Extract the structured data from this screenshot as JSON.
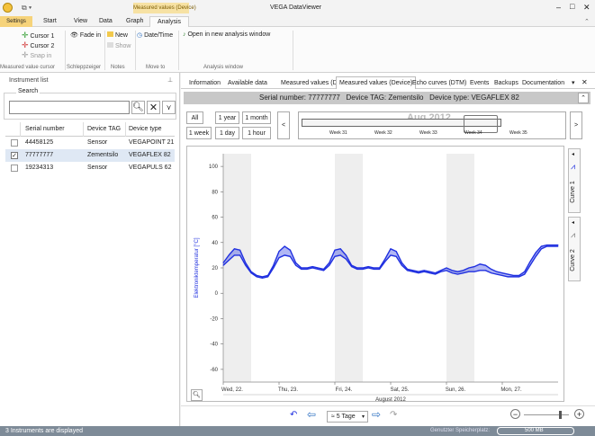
{
  "window": {
    "title": "VEGA DataViewer",
    "context_tab": "Measured values (Device)",
    "controls": {
      "minimize": "–",
      "maximize": "□",
      "close": "✕"
    }
  },
  "ribbon_tabs": [
    "Settings",
    "Start",
    "View",
    "Data",
    "Graph",
    "Analysis"
  ],
  "ribbon": {
    "cursor1": "Cursor 1",
    "cursor2": "Cursor 2",
    "snapin": "Snap in",
    "fadein": "Fade in",
    "new": "New",
    "show": "Show",
    "datetime": "Date/Time",
    "open_new": "Open in new analysis window",
    "groups": [
      "Measured value cursor",
      "Schleppzeiger",
      "Notes",
      "Move to",
      "Analysis window"
    ]
  },
  "instrument_list": {
    "title": "Instrument list",
    "search_label": "Search",
    "search_value": "",
    "columns": [
      "Serial number",
      "Device TAG",
      "Device type"
    ],
    "rows": [
      {
        "serial": "44458125",
        "tag": "Sensor",
        "type": "VEGAPOINT 21",
        "checked": false
      },
      {
        "serial": "77777777",
        "tag": "Zementsilo",
        "type": "VEGAFLEX 82",
        "checked": true
      },
      {
        "serial": "19234313",
        "tag": "Sensor",
        "type": "VEGAPULS 62",
        "checked": false
      }
    ]
  },
  "doc_tabs": [
    "Information",
    "Available data",
    "Measured values (DTM)",
    "Measured values (Device)",
    "Echo curves (DTM)",
    "Events",
    "Backups",
    "Documentation"
  ],
  "device_header": {
    "serial_label": "Serial number:",
    "serial": "77777777",
    "tag_label": "Device TAG:",
    "tag": "Zementsilo",
    "type_label": "Device type:",
    "type": "VEGAFLEX 82"
  },
  "range_buttons": [
    "All",
    "1 year",
    "1 month",
    "1 week",
    "1 day",
    "1 hour"
  ],
  "overview": {
    "month": "Aug 2012",
    "weeks": [
      "Week 31",
      "Week 32",
      "Week 33",
      "Week 34",
      "Week 35"
    ]
  },
  "side_tabs": [
    "Curve 1",
    "Curve 2"
  ],
  "chart_data": {
    "type": "line",
    "ylabel": "Elektroniktemperatur [°C]",
    "ylim": [
      -70,
      110
    ],
    "yticks": [
      100,
      80,
      60,
      40,
      20,
      0,
      -20,
      -40,
      -60
    ],
    "xticks": [
      "Wed, 22.",
      "Thu, 23.",
      "Fri, 24.",
      "Sat, 25.",
      "Sun, 26.",
      "Mon, 27."
    ],
    "xsublabel": "August 2012",
    "xlim": [
      0,
      6
    ],
    "grid": false,
    "color": "#2030e0",
    "series": [
      {
        "x": [
          0,
          0.1,
          0.2,
          0.3,
          0.4,
          0.5,
          0.6,
          0.7,
          0.8,
          0.9,
          1.0,
          1.1,
          1.2,
          1.3,
          1.4,
          1.5,
          1.6,
          1.7,
          1.8,
          1.9,
          2.0,
          2.1,
          2.2,
          2.3,
          2.4,
          2.5,
          2.6,
          2.7,
          2.8,
          2.9,
          3.0,
          3.1,
          3.2,
          3.3,
          3.4,
          3.5,
          3.6,
          3.7,
          3.8,
          3.9,
          4.0,
          4.1,
          4.2,
          4.3,
          4.4,
          4.5,
          4.6,
          4.7,
          4.8,
          4.9,
          5.0,
          5.1,
          5.2,
          5.3,
          5.4,
          5.5,
          5.6,
          5.7,
          5.8,
          5.9,
          6.0
        ],
        "values": [
          24,
          30,
          35,
          34,
          24,
          17,
          14,
          13,
          14,
          22,
          33,
          37,
          34,
          24,
          20,
          20,
          21,
          20,
          19,
          24,
          34,
          35,
          30,
          22,
          20,
          20,
          21,
          20,
          20,
          27,
          35,
          33,
          24,
          19,
          18,
          17,
          18,
          17,
          16,
          18,
          20,
          18,
          17,
          18,
          20,
          21,
          23,
          22,
          19,
          17,
          16,
          15,
          14,
          14,
          17,
          25,
          32,
          37,
          38,
          38,
          38
        ]
      },
      {
        "x": [
          0,
          0.1,
          0.2,
          0.3,
          0.4,
          0.5,
          0.6,
          0.7,
          0.8,
          0.9,
          1.0,
          1.1,
          1.2,
          1.3,
          1.4,
          1.5,
          1.6,
          1.7,
          1.8,
          1.9,
          2.0,
          2.1,
          2.2,
          2.3,
          2.4,
          2.5,
          2.6,
          2.7,
          2.8,
          2.9,
          3.0,
          3.1,
          3.2,
          3.3,
          3.4,
          3.5,
          3.6,
          3.7,
          3.8,
          3.9,
          4.0,
          4.1,
          4.2,
          4.3,
          4.4,
          4.5,
          4.6,
          4.7,
          4.8,
          4.9,
          5.0,
          5.1,
          5.2,
          5.3,
          5.4,
          5.5,
          5.6,
          5.7,
          5.8,
          5.9,
          6.0
        ],
        "values": [
          22,
          26,
          30,
          30,
          22,
          16,
          13,
          12,
          13,
          20,
          28,
          30,
          29,
          22,
          19,
          19,
          20,
          19,
          18,
          22,
          29,
          30,
          27,
          21,
          19,
          19,
          20,
          19,
          19,
          25,
          30,
          29,
          22,
          18,
          17,
          16,
          17,
          16,
          15,
          17,
          18,
          16,
          15,
          16,
          17,
          17,
          18,
          18,
          16,
          15,
          14,
          13,
          13,
          13,
          15,
          22,
          29,
          35,
          37,
          37,
          37
        ]
      }
    ]
  },
  "chart_footer": {
    "period": "≈ 5 Tage",
    "zoom_minus": "−",
    "zoom_plus": "+"
  },
  "status": {
    "left": "3 Instruments are displayed",
    "right_label": "Genutzter Speicherplatz:",
    "right_value": "500 MB"
  }
}
